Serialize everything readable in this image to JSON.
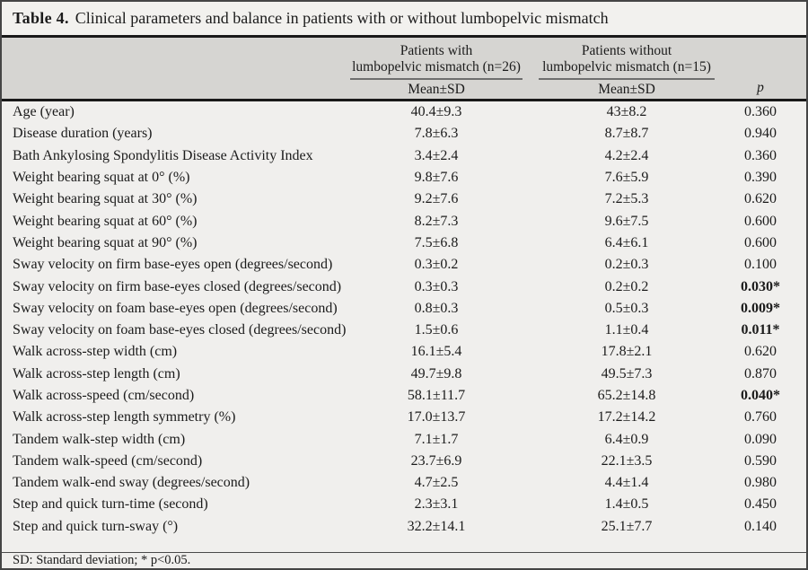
{
  "table": {
    "title_label": "Table 4.",
    "title_text": "Clinical parameters and balance in patients with or without lumbopelvic mismatch",
    "columns": {
      "group1": {
        "label": "Patients with\nlumbopelvic mismatch (n=26)",
        "sub": "Mean±SD"
      },
      "group2": {
        "label": "Patients without\nlumbopelvic mismatch (n=15)",
        "sub": "Mean±SD"
      },
      "p_label": "p"
    },
    "rows": [
      {
        "param": "Age (year)",
        "g1": "40.4±9.3",
        "g2": "43±8.2",
        "p": "0.360",
        "sig": false
      },
      {
        "param": "Disease duration (years)",
        "g1": "7.8±6.3",
        "g2": "8.7±8.7",
        "p": "0.940",
        "sig": false
      },
      {
        "param": "Bath Ankylosing Spondylitis Disease Activity Index",
        "g1": "3.4±2.4",
        "g2": "4.2±2.4",
        "p": "0.360",
        "sig": false
      },
      {
        "param": "Weight bearing squat at 0° (%)",
        "g1": "9.8±7.6",
        "g2": "7.6±5.9",
        "p": "0.390",
        "sig": false
      },
      {
        "param": "Weight bearing squat at 30° (%)",
        "g1": "9.2±7.6",
        "g2": "7.2±5.3",
        "p": "0.620",
        "sig": false
      },
      {
        "param": "Weight bearing squat at 60° (%)",
        "g1": "8.2±7.3",
        "g2": "9.6±7.5",
        "p": "0.600",
        "sig": false
      },
      {
        "param": "Weight bearing squat at 90° (%)",
        "g1": "7.5±6.8",
        "g2": "6.4±6.1",
        "p": "0.600",
        "sig": false
      },
      {
        "param": "Sway velocity on firm base-eyes open (degrees/second)",
        "g1": "0.3±0.2",
        "g2": "0.2±0.3",
        "p": "0.100",
        "sig": false
      },
      {
        "param": "Sway velocity on firm base-eyes closed (degrees/second)",
        "g1": "0.3±0.3",
        "g2": "0.2±0.2",
        "p": "0.030*",
        "sig": true
      },
      {
        "param": "Sway velocity on foam base-eyes open (degrees/second)",
        "g1": "0.8±0.3",
        "g2": "0.5±0.3",
        "p": "0.009*",
        "sig": true
      },
      {
        "param": "Sway velocity on foam base-eyes closed (degrees/second)",
        "g1": "1.5±0.6",
        "g2": "1.1±0.4",
        "p": "0.011*",
        "sig": true
      },
      {
        "param": "Walk across-step width (cm)",
        "g1": "16.1±5.4",
        "g2": "17.8±2.1",
        "p": "0.620",
        "sig": false
      },
      {
        "param": "Walk across-step length (cm)",
        "g1": "49.7±9.8",
        "g2": "49.5±7.3",
        "p": "0.870",
        "sig": false
      },
      {
        "param": "Walk across-speed (cm/second)",
        "g1": "58.1±11.7",
        "g2": "65.2±14.8",
        "p": "0.040*",
        "sig": true
      },
      {
        "param": "Walk across-step length symmetry (%)",
        "g1": "17.0±13.7",
        "g2": "17.2±14.2",
        "p": "0.760",
        "sig": false
      },
      {
        "param": "Tandem walk-step width (cm)",
        "g1": "7.1±1.7",
        "g2": "6.4±0.9",
        "p": "0.090",
        "sig": false
      },
      {
        "param": "Tandem walk-speed (cm/second)",
        "g1": "23.7±6.9",
        "g2": "22.1±3.5",
        "p": "0.590",
        "sig": false
      },
      {
        "param": "Tandem walk-end sway (degrees/second)",
        "g1": "4.7±2.5",
        "g2": "4.4±1.4",
        "p": "0.980",
        "sig": false
      },
      {
        "param": "Step and quick turn-time (second)",
        "g1": "2.3±3.1",
        "g2": "1.4±0.5",
        "p": "0.450",
        "sig": false
      },
      {
        "param": "Step and quick turn-sway (°)",
        "g1": "32.2±14.1",
        "g2": "25.1±7.7",
        "p": "0.140",
        "sig": false
      }
    ],
    "footnote": "SD: Standard deviation; * p<0.05.",
    "colors": {
      "header_band": "#d6d5d2",
      "body_band": "#f0efed",
      "frame_border": "#454545",
      "rule": "#191919"
    }
  }
}
